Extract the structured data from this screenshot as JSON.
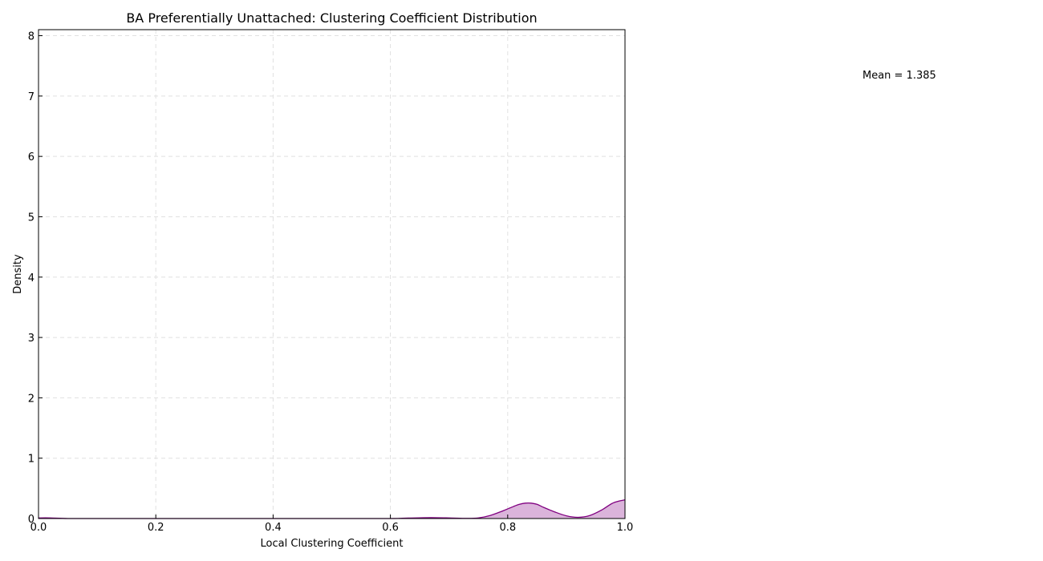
{
  "chart_data": {
    "type": "area",
    "title": "BA Preferentially Unattached: Clustering Coefficient Distribution",
    "xlabel": "Local Clustering Coefficient",
    "ylabel": "Density",
    "xlim": [
      0,
      1
    ],
    "ylim": [
      0,
      8.1
    ],
    "x_ticks": [
      "0.0",
      "0.2",
      "0.4",
      "0.6",
      "0.8",
      "1.0"
    ],
    "y_ticks": [
      "0",
      "1",
      "2",
      "3",
      "4",
      "5",
      "6",
      "7",
      "8"
    ],
    "grid": true,
    "line_color": "#800080",
    "fill_color": "#dbb4db",
    "annotation": "Mean = 1.385",
    "x": [
      0.0,
      0.02,
      0.05,
      0.1,
      0.2,
      0.3,
      0.4,
      0.5,
      0.6,
      0.62,
      0.65,
      0.67,
      0.7,
      0.73,
      0.75,
      0.77,
      0.79,
      0.81,
      0.82,
      0.83,
      0.84,
      0.85,
      0.86,
      0.88,
      0.9,
      0.92,
      0.94,
      0.96,
      0.98,
      1.0
    ],
    "y": [
      0.01,
      0.01,
      0.0,
      0.0,
      0.0,
      0.0,
      0.0,
      0.0,
      0.0,
      0.005,
      0.012,
      0.015,
      0.01,
      0.003,
      0.01,
      0.05,
      0.12,
      0.2,
      0.235,
      0.255,
      0.255,
      0.235,
      0.19,
      0.11,
      0.045,
      0.02,
      0.05,
      0.14,
      0.26,
      0.31
    ]
  }
}
